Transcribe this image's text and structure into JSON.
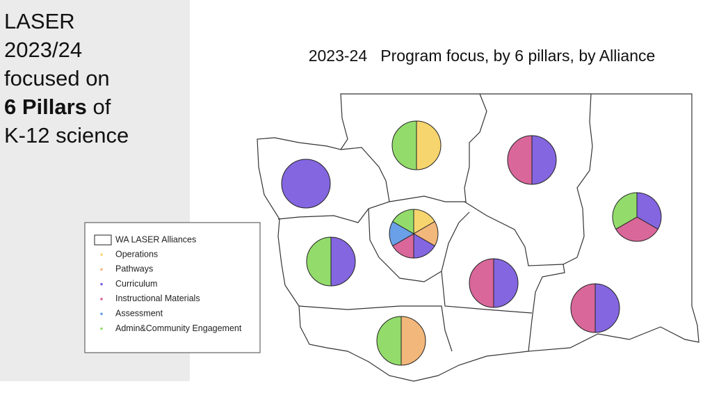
{
  "heading": {
    "lines": [
      "LASER",
      "2023/24",
      "focused on"
    ],
    "bold": "6 Pillars",
    "after_bold": "of",
    "last": "K-12 science"
  },
  "chart_data": {
    "type": "pie",
    "title": "2023-24   Program focus, by 6 pillars, by Alliance",
    "legend_title": "WA LASER Alliances",
    "series": [
      {
        "name": "Operations",
        "color": "#f7d56e"
      },
      {
        "name": "Pathways",
        "color": "#f2b77a"
      },
      {
        "name": "Curriculum",
        "color": "#8466e0"
      },
      {
        "name": "Instructional Materials",
        "color": "#d9679a"
      },
      {
        "name": "Assessment",
        "color": "#6aa0e8"
      },
      {
        "name": "Admin&Community Engagement",
        "color": "#93dc6c"
      }
    ],
    "pies": [
      {
        "values": [
          50,
          0,
          0,
          0,
          0,
          50
        ]
      },
      {
        "values": [
          0,
          0,
          50,
          50,
          0,
          0
        ]
      },
      {
        "values": [
          0,
          0,
          100,
          0,
          0,
          0
        ]
      },
      {
        "values": [
          0,
          0,
          33.3,
          33.3,
          0,
          33.3
        ]
      },
      {
        "values": [
          16.7,
          16.7,
          16.7,
          16.7,
          16.7,
          16.7
        ]
      },
      {
        "values": [
          0,
          0,
          50,
          0,
          0,
          50
        ]
      },
      {
        "values": [
          0,
          0,
          50,
          50,
          0,
          0
        ]
      },
      {
        "values": [
          0,
          0,
          50,
          50,
          0,
          0
        ]
      },
      {
        "values": [
          0,
          50,
          0,
          0,
          0,
          50
        ]
      }
    ]
  }
}
